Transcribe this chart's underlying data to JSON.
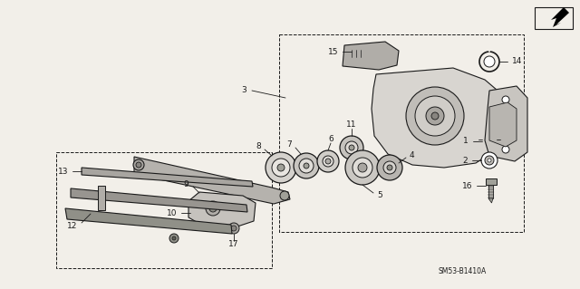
{
  "bg_color": "#f2efe9",
  "line_color": "#1a1a1a",
  "part_numbers_label": "SM53-B1410A",
  "fig_width": 6.4,
  "fig_height": 3.19,
  "dpi": 100
}
